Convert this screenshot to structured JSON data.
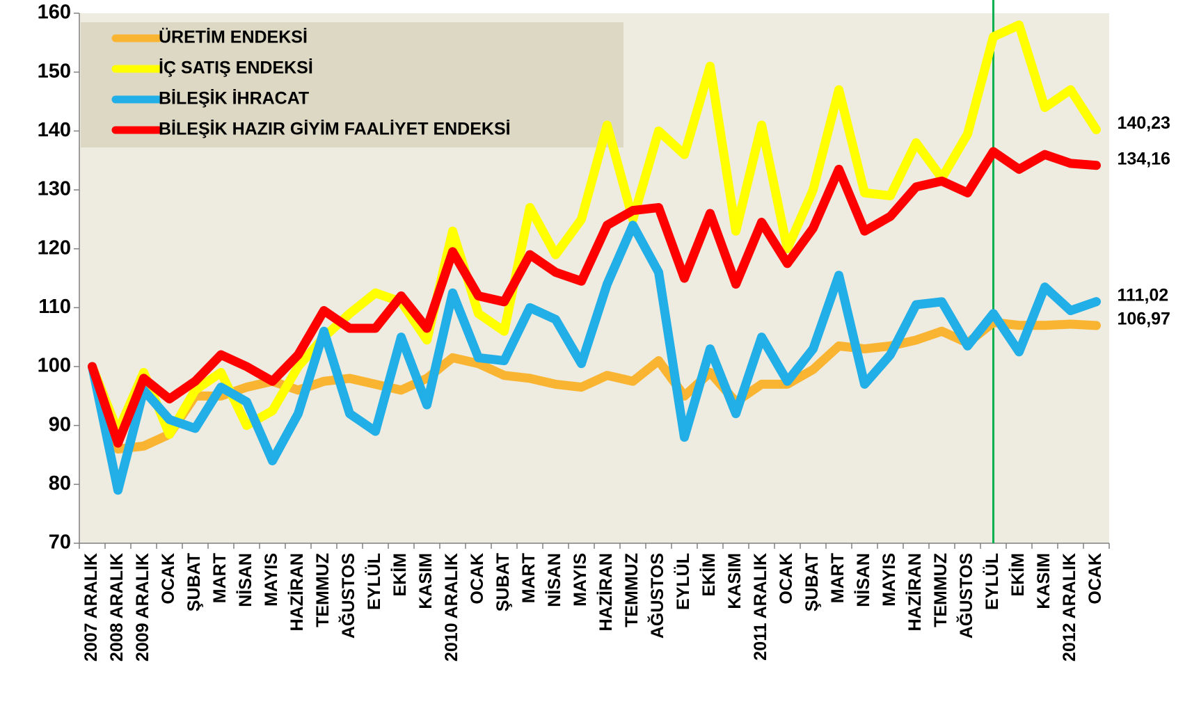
{
  "chart_data": {
    "type": "line",
    "categories": [
      "2007 ARALIK",
      "2008 ARALIK",
      "2009 ARALIK",
      "OCAK",
      "ŞUBAT",
      "MART",
      "NİSAN",
      "MAYIS",
      "HAZİRAN",
      "TEMMUZ",
      "AĞUSTOS",
      "EYLÜL",
      "EKİM",
      "KASIM",
      "2010 ARALIK",
      "OCAK",
      "ŞUBAT",
      "MART",
      "NİSAN",
      "MAYIS",
      "HAZİRAN",
      "TEMMUZ",
      "AĞUSTOS",
      "EYLÜL",
      "EKİM",
      "KASIM",
      "2011 ARALIK",
      "OCAK",
      "ŞUBAT",
      "MART",
      "NİSAN",
      "MAYIS",
      "HAZİRAN",
      "TEMMUZ",
      "AĞUSTOS",
      "EYLÜL",
      "EKİM",
      "KASIM",
      "2012 ARALIK",
      "OCAK"
    ],
    "series": [
      {
        "name": "ÜRETİM ENDEKSİ",
        "color": "#f9b532",
        "values": [
          100,
          86,
          86.5,
          88.5,
          95,
          95,
          96.5,
          97.5,
          96,
          97.5,
          98,
          97,
          96,
          98,
          101.5,
          100.5,
          98.5,
          98,
          97,
          96.5,
          98.5,
          97.5,
          101,
          95,
          99,
          94,
          97,
          97,
          99.5,
          103.5,
          103,
          103.5,
          104.5,
          106,
          104,
          107.5,
          107,
          107,
          107.2,
          106.97
        ],
        "value_labels": [
          null,
          null,
          null,
          null,
          null,
          null,
          null,
          null,
          null,
          null,
          null,
          null,
          null,
          null,
          null,
          null,
          null,
          null,
          null,
          null,
          null,
          null,
          null,
          null,
          null,
          null,
          null,
          null,
          null,
          null,
          null,
          null,
          null,
          null,
          null,
          null,
          null,
          null,
          null,
          "106,97"
        ]
      },
      {
        "name": "İÇ SATIŞ ENDEKSİ",
        "color": "#ffff00",
        "values": [
          100,
          89,
          99,
          88.5,
          96,
          99,
          90,
          92.5,
          100,
          105,
          109,
          112.5,
          111,
          104.5,
          123,
          109,
          106,
          127,
          119,
          125,
          141,
          125,
          140,
          136,
          151,
          123,
          141,
          120,
          130,
          147,
          129.5,
          129,
          138,
          132,
          139.5,
          156,
          158,
          144,
          147,
          140.23
        ],
        "value_labels": [
          null,
          null,
          null,
          null,
          null,
          null,
          null,
          null,
          null,
          null,
          null,
          null,
          null,
          null,
          null,
          null,
          null,
          null,
          null,
          null,
          null,
          null,
          null,
          null,
          null,
          null,
          null,
          null,
          null,
          null,
          null,
          null,
          null,
          null,
          null,
          null,
          null,
          null,
          null,
          "140,23"
        ]
      },
      {
        "name": "BİLEŞİK İHRACAT",
        "color": "#22aee6",
        "values": [
          100,
          79,
          96,
          91,
          89.5,
          96.5,
          94,
          84,
          92,
          106,
          92,
          89,
          105,
          93.5,
          112.5,
          101.5,
          101,
          110,
          108,
          100.5,
          114,
          124,
          116,
          88,
          103,
          92,
          105,
          97.5,
          103,
          115.5,
          97,
          102,
          110.5,
          111,
          103.5,
          109,
          102.5,
          113.5,
          109.5,
          111.02
        ],
        "value_labels": [
          null,
          null,
          null,
          null,
          null,
          null,
          null,
          null,
          null,
          null,
          null,
          null,
          null,
          null,
          null,
          null,
          null,
          null,
          null,
          null,
          null,
          null,
          null,
          null,
          null,
          null,
          null,
          null,
          null,
          null,
          null,
          null,
          null,
          null,
          null,
          null,
          null,
          null,
          null,
          "111,02"
        ]
      },
      {
        "name": "BİLEŞİK HAZIR GİYİM FAALİYET ENDEKSİ",
        "color": "#ff0000",
        "values": [
          100,
          87,
          98,
          94.5,
          97.5,
          102,
          100,
          97.5,
          102,
          109.5,
          106.5,
          106.5,
          112,
          106.5,
          119.5,
          112,
          111,
          119,
          116,
          114.5,
          124,
          126.5,
          127,
          115,
          126,
          114,
          124.5,
          117.5,
          123.5,
          133.5,
          123,
          125.5,
          130.5,
          131.5,
          129.5,
          136.5,
          133.5,
          136,
          134.5,
          134.16
        ],
        "value_labels": [
          null,
          null,
          null,
          null,
          null,
          null,
          null,
          null,
          null,
          null,
          null,
          null,
          null,
          null,
          null,
          null,
          null,
          null,
          null,
          null,
          null,
          null,
          null,
          null,
          null,
          null,
          null,
          null,
          null,
          null,
          null,
          null,
          null,
          null,
          null,
          null,
          null,
          null,
          null,
          "134,16"
        ]
      }
    ],
    "ylim": [
      70,
      160
    ],
    "yticks": [
      70,
      80,
      90,
      100,
      110,
      120,
      130,
      140,
      150,
      160
    ],
    "grid": false,
    "legend": "top-left",
    "vline_index": 35,
    "vline_color": "#00b050"
  }
}
